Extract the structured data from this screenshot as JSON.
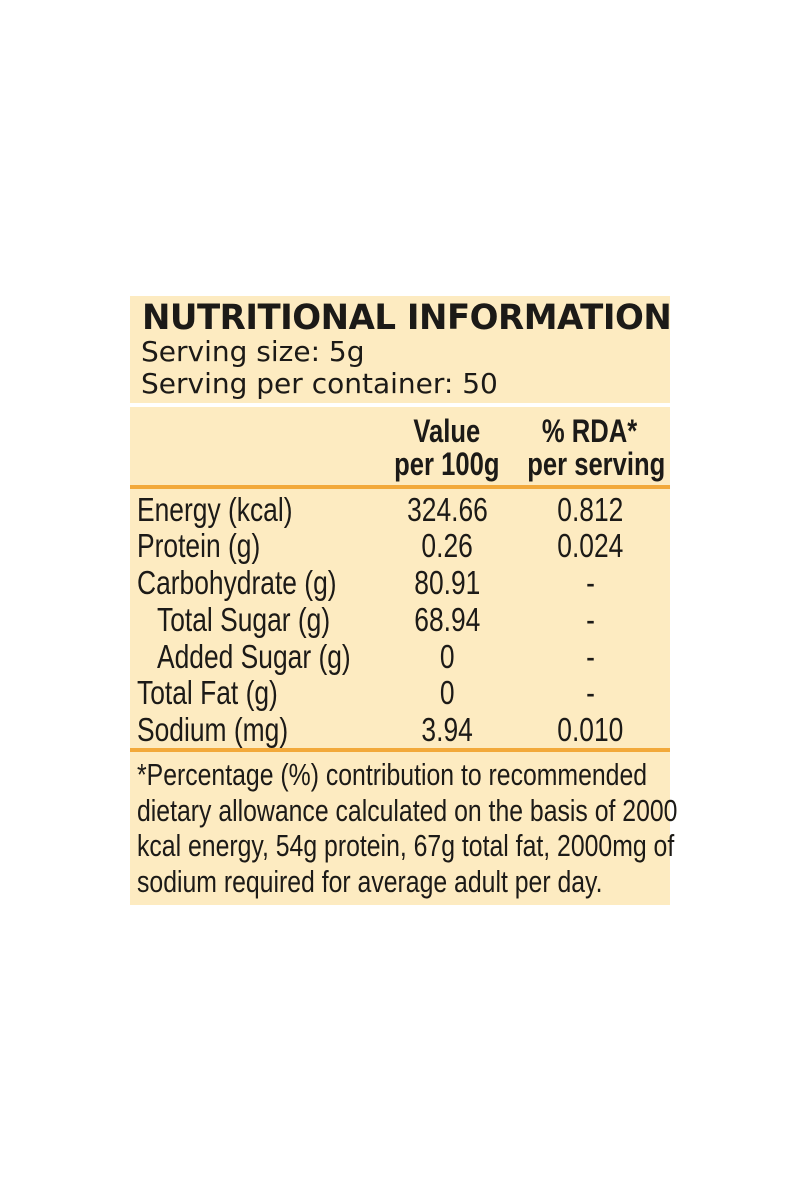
{
  "title": "NUTRITIONAL INFORMATION",
  "serving_size": "Serving size: 5g",
  "servings_per_container": "Serving per container: 50",
  "columns": {
    "value": [
      "Value",
      "per 100g"
    ],
    "rda": [
      "% RDA*",
      "per serving"
    ]
  },
  "rows": [
    {
      "label": "Energy (kcal)",
      "value": "324.66",
      "rda": "0.812"
    },
    {
      "label": "Protein (g)",
      "value": "0.26",
      "rda": "0.024"
    },
    {
      "label": "Carbohydrate (g)",
      "value": "80.91",
      "rda": "-"
    },
    {
      "label": "Total Sugar (g)",
      "value": "68.94",
      "rda": "-"
    },
    {
      "label": "Added Sugar (g)",
      "value": "0",
      "rda": "-"
    },
    {
      "label": "Total Fat (g)",
      "value": "0",
      "rda": "-"
    },
    {
      "label": "Sodium (mg)",
      "value": "3.94",
      "rda": "0.010"
    }
  ],
  "footnote": [
    "*Percentage (%) contribution to recommended",
    "dietary allowance calculated on the basis of 2000",
    "kcal energy, 54g protein, 67g total fat, 2000mg of",
    "sodium  required for average adult per day."
  ],
  "colors": {
    "background": "#fdebc1",
    "rule": "#f2a93b",
    "text": "#1c1a17"
  }
}
